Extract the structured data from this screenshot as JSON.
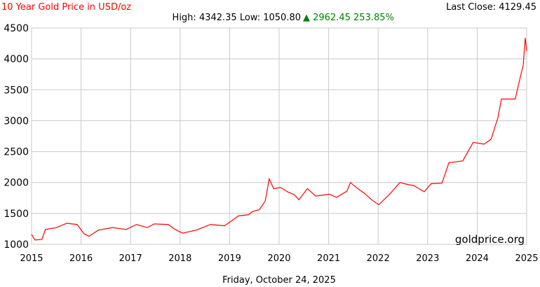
{
  "chart_data": {
    "type": "line",
    "title": "10 Year Gold Price in USD/oz",
    "stats": "High: 4342.35 Low: 1050.80",
    "change": "▲ 2962.45 253.85%",
    "last_close": "Last Close: 4129.45",
    "watermark": "goldprice.org",
    "date": "Friday, October 24, 2025",
    "x": [
      2015.0,
      2015.07,
      2015.21,
      2015.28,
      2015.5,
      2015.71,
      2015.92,
      2016.06,
      2016.16,
      2016.35,
      2016.63,
      2016.91,
      2017.12,
      2017.34,
      2017.48,
      2017.76,
      2017.9,
      2018.05,
      2018.33,
      2018.61,
      2018.9,
      2019.18,
      2019.39,
      2019.46,
      2019.6,
      2019.72,
      2019.8,
      2019.89,
      2020.03,
      2020.17,
      2020.31,
      2020.4,
      2020.57,
      2020.74,
      2021.02,
      2021.16,
      2021.37,
      2021.44,
      2021.59,
      2021.73,
      2021.87,
      2022.01,
      2022.22,
      2022.44,
      2022.58,
      2022.72,
      2022.93,
      2023.07,
      2023.29,
      2023.43,
      2023.71,
      2023.92,
      2024.14,
      2024.28,
      2024.42,
      2024.49,
      2024.77,
      2024.84,
      2024.93,
      2024.97,
      2025.0
    ],
    "series": [
      {
        "name": "Gold",
        "color": "#ff0000",
        "values": [
          1160,
          1070,
          1080,
          1240,
          1270,
          1340,
          1320,
          1170,
          1130,
          1230,
          1270,
          1240,
          1320,
          1270,
          1330,
          1320,
          1240,
          1180,
          1230,
          1320,
          1300,
          1460,
          1480,
          1530,
          1560,
          1700,
          2060,
          1900,
          1920,
          1850,
          1800,
          1720,
          1900,
          1780,
          1810,
          1760,
          1860,
          2000,
          1900,
          1820,
          1720,
          1640,
          1800,
          2000,
          1970,
          1950,
          1850,
          1980,
          1990,
          2320,
          2350,
          2650,
          2620,
          2700,
          3050,
          3350,
          3350,
          3600,
          3900,
          4340,
          4130
        ]
      }
    ],
    "xlim": [
      2015,
      2025
    ],
    "xticks": [
      2015,
      2016,
      2017,
      2018,
      2019,
      2020,
      2021,
      2022,
      2023,
      2024,
      2025
    ],
    "ylim": [
      1000,
      4500
    ],
    "yticks": [
      1000,
      1500,
      2000,
      2500,
      3000,
      3500,
      4000,
      4500
    ],
    "grid": true
  }
}
